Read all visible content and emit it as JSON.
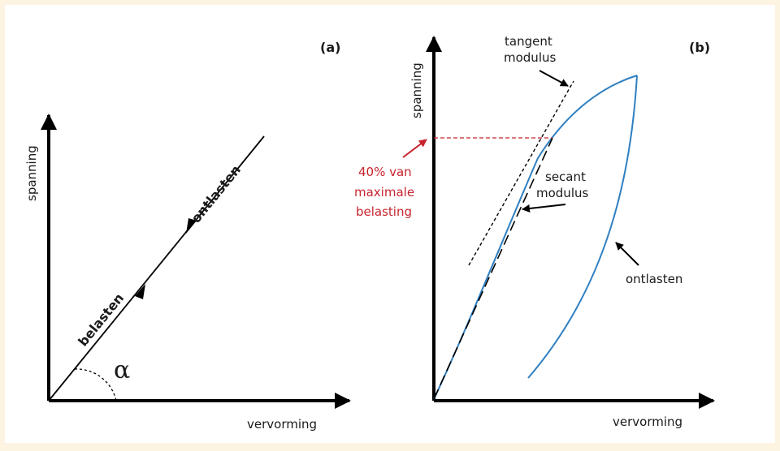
{
  "panel_a": {
    "label": "(a)",
    "x_axis_label": "vervorming",
    "y_axis_label": "spanning",
    "load_label": "belasten",
    "unload_label": "ontlasten",
    "angle_symbol": "α"
  },
  "panel_b": {
    "label": "(b)",
    "x_axis_label": "vervorming",
    "y_axis_label": "spanning",
    "tangent_label": [
      "tangent",
      "modulus"
    ],
    "secant_label": [
      "secant",
      "modulus"
    ],
    "unload_label": "ontlasten",
    "reference_label": [
      "40% van",
      "maximale",
      "belasting"
    ]
  },
  "colors": {
    "background": "#fdf3e1",
    "axis": "#000000",
    "curve": "#2f7fc1",
    "reference": "#c8242f"
  }
}
